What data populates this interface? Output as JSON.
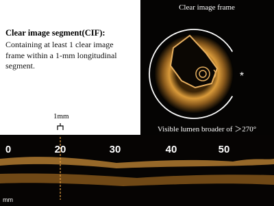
{
  "text_block": {
    "title": "Clear image segment(CIF):",
    "body": "Containing at least 1 clear image frame within a 1-mm longitudinal segment."
  },
  "cross_section": {
    "top_label": "Clear image frame",
    "marker": "*",
    "bottom_label": "Visible lumen broader of ＞270°"
  },
  "longitudinal": {
    "scale_label": "1mm",
    "ticks": [
      "0",
      "20",
      "30",
      "40",
      "50"
    ],
    "unit": "mm"
  }
}
